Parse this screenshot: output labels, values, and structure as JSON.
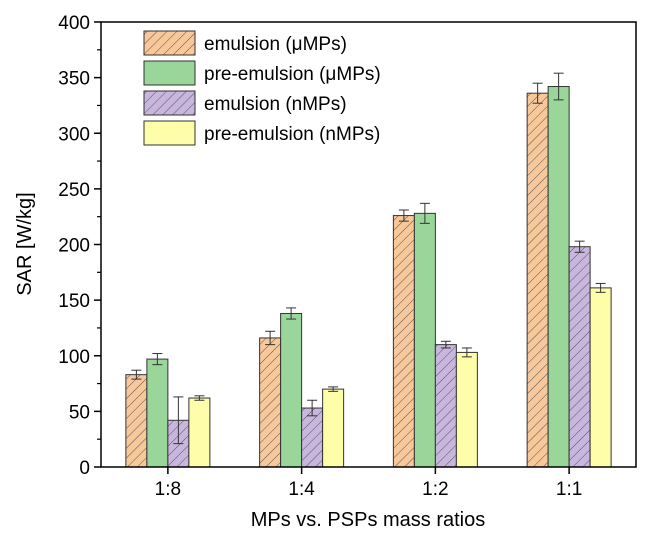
{
  "chart_data": {
    "type": "bar",
    "xlabel": "MPs vs. PSPs mass ratios",
    "ylabel": "SAR [W/kg]",
    "ylim": [
      0,
      400
    ],
    "yticks": [
      0,
      50,
      100,
      150,
      200,
      250,
      300,
      350,
      400
    ],
    "categories": [
      "1:8",
      "1:4",
      "1:2",
      "1:1"
    ],
    "legend_position": "top-left",
    "series": [
      {
        "name": "emulsion (μMPs)",
        "color": "#f8c89a",
        "pattern": "hatch",
        "values": [
          83,
          116,
          226,
          336
        ],
        "errors": [
          4,
          6,
          5,
          9
        ]
      },
      {
        "name": "pre-emulsion (μMPs)",
        "color": "#9ad59a",
        "pattern": "solid",
        "values": [
          97,
          138,
          228,
          342
        ],
        "errors": [
          5,
          5,
          9,
          12
        ]
      },
      {
        "name": "emulsion (nMPs)",
        "color": "#c9b6de",
        "pattern": "hatch",
        "values": [
          42,
          53,
          110,
          198
        ],
        "errors": [
          21,
          7,
          3,
          5
        ]
      },
      {
        "name": "pre-emulsion (nMPs)",
        "color": "#fefeaa",
        "pattern": "solid",
        "values": [
          62,
          70,
          103,
          161
        ],
        "errors": [
          2,
          2,
          4,
          4
        ]
      }
    ]
  }
}
